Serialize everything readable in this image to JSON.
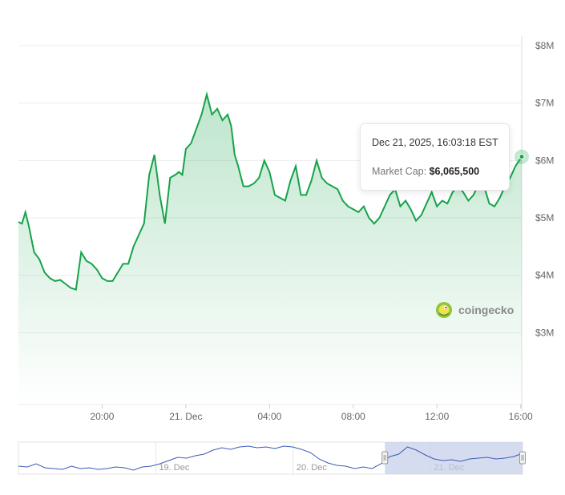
{
  "chart_data": {
    "type": "area",
    "currency_prefix": "$",
    "y_tick_labels": [
      "$3M",
      "$4M",
      "$5M",
      "$6M",
      "$7M",
      "$8M"
    ],
    "y_ticks": [
      3000000,
      4000000,
      5000000,
      6000000,
      7000000,
      8000000
    ],
    "ylim": [
      1750000,
      8000000
    ],
    "x_tick_labels": [
      "20:00",
      "21. Dec",
      "04:00",
      "08:00",
      "12:00",
      "16:00"
    ],
    "x_ticks": [
      "2025-12-20 20:00",
      "2025-12-21 00:00",
      "2025-12-21 04:00",
      "2025-12-21 08:00",
      "2025-12-21 12:00",
      "2025-12-21 16:00"
    ],
    "xlim": [
      "2025-12-20 16:00",
      "2025-12-21 16:03"
    ],
    "grid": true,
    "line_color": "#16a34a",
    "fill_color": "#16a34a",
    "x": [
      "2025-12-20 16:00",
      "2025-12-20 16:10",
      "2025-12-20 16:20",
      "2025-12-20 16:30",
      "2025-12-20 16:45",
      "2025-12-20 17:00",
      "2025-12-20 17:15",
      "2025-12-20 17:30",
      "2025-12-20 17:45",
      "2025-12-20 18:00",
      "2025-12-20 18:15",
      "2025-12-20 18:30",
      "2025-12-20 18:45",
      "2025-12-20 19:00",
      "2025-12-20 19:15",
      "2025-12-20 19:30",
      "2025-12-20 19:45",
      "2025-12-20 20:00",
      "2025-12-20 20:15",
      "2025-12-20 20:30",
      "2025-12-20 20:45",
      "2025-12-20 21:00",
      "2025-12-20 21:15",
      "2025-12-20 21:30",
      "2025-12-20 21:45",
      "2025-12-20 22:00",
      "2025-12-20 22:15",
      "2025-12-20 22:30",
      "2025-12-20 22:45",
      "2025-12-20 23:00",
      "2025-12-20 23:15",
      "2025-12-20 23:30",
      "2025-12-20 23:40",
      "2025-12-20 23:50",
      "2025-12-21 00:00",
      "2025-12-21 00:15",
      "2025-12-21 00:30",
      "2025-12-21 00:45",
      "2025-12-21 01:00",
      "2025-12-21 01:15",
      "2025-12-21 01:30",
      "2025-12-21 01:45",
      "2025-12-21 02:00",
      "2025-12-21 02:10",
      "2025-12-21 02:20",
      "2025-12-21 02:30",
      "2025-12-21 02:45",
      "2025-12-21 03:00",
      "2025-12-21 03:15",
      "2025-12-21 03:30",
      "2025-12-21 03:45",
      "2025-12-21 04:00",
      "2025-12-21 04:15",
      "2025-12-21 04:30",
      "2025-12-21 04:45",
      "2025-12-21 05:00",
      "2025-12-21 05:15",
      "2025-12-21 05:30",
      "2025-12-21 05:45",
      "2025-12-21 06:00",
      "2025-12-21 06:15",
      "2025-12-21 06:30",
      "2025-12-21 06:45",
      "2025-12-21 07:00",
      "2025-12-21 07:15",
      "2025-12-21 07:30",
      "2025-12-21 07:45",
      "2025-12-21 08:00",
      "2025-12-21 08:15",
      "2025-12-21 08:30",
      "2025-12-21 08:45",
      "2025-12-21 09:00",
      "2025-12-21 09:15",
      "2025-12-21 09:30",
      "2025-12-21 09:45",
      "2025-12-21 10:00",
      "2025-12-21 10:15",
      "2025-12-21 10:30",
      "2025-12-21 10:45",
      "2025-12-21 11:00",
      "2025-12-21 11:15",
      "2025-12-21 11:30",
      "2025-12-21 11:45",
      "2025-12-21 12:00",
      "2025-12-21 12:15",
      "2025-12-21 12:30",
      "2025-12-21 12:45",
      "2025-12-21 13:00",
      "2025-12-21 13:15",
      "2025-12-21 13:30",
      "2025-12-21 13:45",
      "2025-12-21 14:00",
      "2025-12-21 14:15",
      "2025-12-21 14:30",
      "2025-12-21 14:45",
      "2025-12-21 15:00",
      "2025-12-21 15:15",
      "2025-12-21 15:30",
      "2025-12-21 15:45",
      "2025-12-21 16:03"
    ],
    "y": [
      4930000,
      4900000,
      5100000,
      4850000,
      4400000,
      4280000,
      4050000,
      3950000,
      3900000,
      3920000,
      3850000,
      3780000,
      3750000,
      4400000,
      4250000,
      4200000,
      4100000,
      3950000,
      3900000,
      3900000,
      4050000,
      4200000,
      4200000,
      4500000,
      4700000,
      4900000,
      5750000,
      6100000,
      5400000,
      4900000,
      5700000,
      5750000,
      5800000,
      5750000,
      6200000,
      6300000,
      6550000,
      6800000,
      7150000,
      6800000,
      6900000,
      6700000,
      6800000,
      6600000,
      6100000,
      5900000,
      5550000,
      5550000,
      5600000,
      5700000,
      6000000,
      5800000,
      5400000,
      5350000,
      5300000,
      5650000,
      5900000,
      5400000,
      5400000,
      5650000,
      6000000,
      5700000,
      5600000,
      5550000,
      5500000,
      5300000,
      5200000,
      5150000,
      5100000,
      5200000,
      5000000,
      4900000,
      5000000,
      5200000,
      5400000,
      5500000,
      5200000,
      5300000,
      5150000,
      4950000,
      5050000,
      5250000,
      5450000,
      5200000,
      5300000,
      5250000,
      5450000,
      5550000,
      5450000,
      5300000,
      5400000,
      5600000,
      5550000,
      5250000,
      5200000,
      5350000,
      5550000,
      5700000,
      5900000,
      6065500
    ]
  },
  "tooltip": {
    "date": "Dec 21, 2025, 16:03:18 EST",
    "label": "Market Cap:",
    "value": "$6,065,500"
  },
  "watermark": {
    "brand": "coingecko"
  },
  "navigator": {
    "tick_labels": [
      "19. Dec",
      "20. Dec",
      "21. Dec"
    ],
    "ticks": [
      "2025-12-19 00:00",
      "2025-12-20 00:00",
      "2025-12-21 00:00"
    ],
    "range": [
      "2025-12-18 00:00",
      "2025-12-21 16:03"
    ],
    "selected": [
      "2025-12-20 16:00",
      "2025-12-21 16:03"
    ],
    "line_color": "#3b5bb5",
    "values": [
      4.3,
      4.2,
      4.6,
      4.1,
      4.0,
      3.9,
      4.3,
      4.0,
      4.1,
      3.9,
      4.0,
      4.2,
      4.1,
      3.8,
      4.2,
      4.3,
      4.6,
      5.0,
      5.4,
      5.3,
      5.6,
      5.8,
      6.3,
      6.6,
      6.4,
      6.7,
      6.8,
      6.6,
      6.7,
      6.5,
      6.8,
      6.7,
      6.4,
      6.0,
      5.2,
      4.7,
      4.4,
      4.3,
      4.0,
      4.2,
      4.0,
      4.6,
      5.5,
      5.8,
      6.7,
      6.3,
      5.7,
      5.2,
      5.0,
      5.1,
      4.9,
      5.2,
      5.3,
      5.4,
      5.2,
      5.3,
      5.5,
      5.9
    ]
  }
}
